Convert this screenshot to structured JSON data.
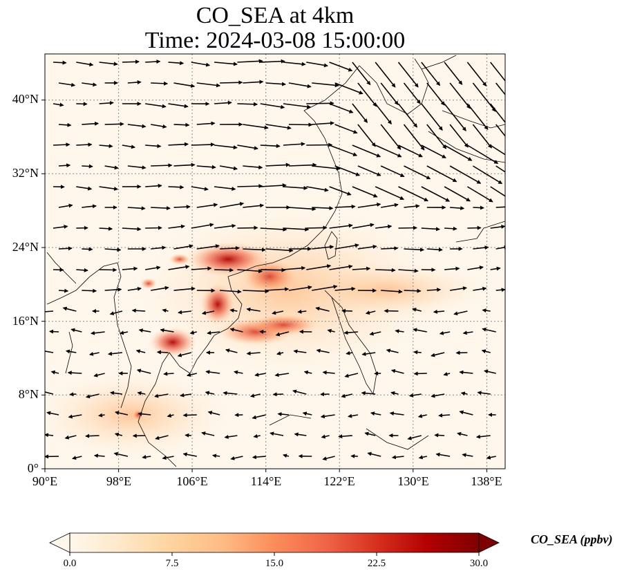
{
  "title": {
    "line1": "CO_SEA at 4km",
    "line2": "Time: 2024-03-08 15:00:00"
  },
  "map": {
    "projection": "PlateCarree",
    "lon_range": [
      90,
      140
    ],
    "lat_range": [
      0,
      45
    ],
    "lat_ticks": [
      {
        "value": 0,
        "label": "0°"
      },
      {
        "value": 8,
        "label": "8°N"
      },
      {
        "value": 16,
        "label": "16°N"
      },
      {
        "value": 24,
        "label": "24°N"
      },
      {
        "value": 32,
        "label": "32°N"
      },
      {
        "value": 40,
        "label": "40°N"
      }
    ],
    "lon_ticks": [
      {
        "value": 90,
        "label": "90°E"
      },
      {
        "value": 98,
        "label": "98°E"
      },
      {
        "value": 106,
        "label": "106°E"
      },
      {
        "value": 114,
        "label": "114°E"
      },
      {
        "value": 122,
        "label": "122°E"
      },
      {
        "value": 130,
        "label": "130°E"
      },
      {
        "value": 138,
        "label": "138°E"
      }
    ],
    "gridlines": true,
    "background_color": "#fff7ec",
    "coastline_color": "#000000",
    "wind_vectors": "shown"
  },
  "colorbar": {
    "label": "CO_SEA (ppbv)",
    "min": 0.0,
    "max": 30.0,
    "extend": "both",
    "colormap": "OrRd",
    "colors": [
      "#fff7ec",
      "#fee8c8",
      "#fdd49e",
      "#fdbb84",
      "#fc8d59",
      "#ef6548",
      "#d7301f",
      "#b30000",
      "#7f0000"
    ],
    "ticks": [
      "0.0",
      "7.5",
      "15.0",
      "22.5",
      "30.0"
    ]
  }
}
